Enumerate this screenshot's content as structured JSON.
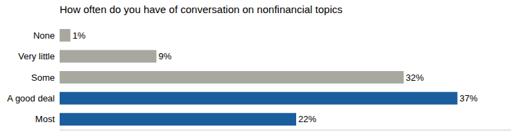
{
  "chart_data": {
    "type": "bar",
    "orientation": "horizontal",
    "title": "How often do you have of conversation on nonfinancial topics",
    "categories": [
      "None",
      "Very little",
      "Some",
      "A good deal",
      "Most"
    ],
    "values": [
      1,
      9,
      32,
      37,
      22
    ],
    "value_labels": [
      "1%",
      "9%",
      "32%",
      "37%",
      "22%"
    ],
    "data_labels": true,
    "colors": [
      "#a8a8a0",
      "#a8a8a0",
      "#a8a8a0",
      "#1a5e9e",
      "#1a5e9e"
    ],
    "xlim": [
      0,
      42
    ],
    "tick_labels": "y",
    "grid": false
  }
}
